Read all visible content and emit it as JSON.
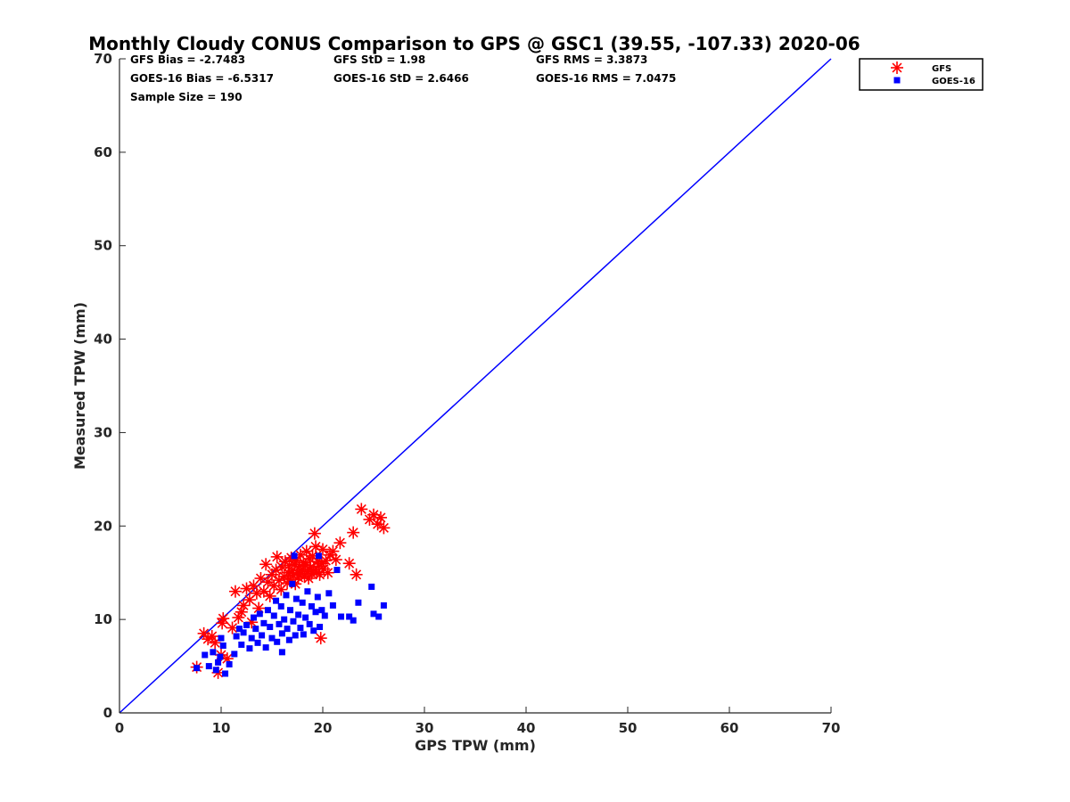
{
  "chart_data": {
    "type": "scatter",
    "title": "Monthly Cloudy CONUS Comparison to GPS @ GSC1 (39.55, -107.33) 2020-06",
    "xlabel": "GPS TPW (mm)",
    "ylabel": "Measured TPW (mm)",
    "xlim": [
      0,
      70
    ],
    "ylim": [
      0,
      70
    ],
    "xticks": [
      "0",
      "10",
      "20",
      "30",
      "40",
      "50",
      "60",
      "70"
    ],
    "yticks": [
      "0",
      "10",
      "20",
      "30",
      "40",
      "50",
      "60",
      "70"
    ],
    "grid": false,
    "legend_position": "outside-top-right",
    "reference_line": {
      "x": [
        0,
        70
      ],
      "y": [
        0,
        70
      ],
      "color": "#0000ff"
    },
    "stats": [
      [
        "GFS Bias = -2.7483",
        "GFS StD = 1.98",
        "GFS RMS = 3.3873"
      ],
      [
        "GOES-16 Bias = -6.5317",
        "GOES-16 StD = 2.6466",
        "GOES-16 RMS = 7.0475"
      ],
      [
        "Sample Size = 190",
        "",
        ""
      ]
    ],
    "series": [
      {
        "name": "GFS",
        "marker": "asterisk",
        "color": "#ff0000",
        "points": [
          [
            7.6,
            4.9
          ],
          [
            8.3,
            8.5
          ],
          [
            8.7,
            7.9
          ],
          [
            9.1,
            8.2
          ],
          [
            9.4,
            7.5
          ],
          [
            9.7,
            4.3
          ],
          [
            10.0,
            6.2
          ],
          [
            10.1,
            9.6
          ],
          [
            10.2,
            10.1
          ],
          [
            10.6,
            5.8
          ],
          [
            11.1,
            9.1
          ],
          [
            11.4,
            13.0
          ],
          [
            11.7,
            10.2
          ],
          [
            12.0,
            10.8
          ],
          [
            12.2,
            11.5
          ],
          [
            12.5,
            13.3
          ],
          [
            12.8,
            12.1
          ],
          [
            13.0,
            9.7
          ],
          [
            13.2,
            13.6
          ],
          [
            13.5,
            12.8
          ],
          [
            13.7,
            11.2
          ],
          [
            13.9,
            14.4
          ],
          [
            14.2,
            13.0
          ],
          [
            14.4,
            15.9
          ],
          [
            14.6,
            14.0
          ],
          [
            14.8,
            12.5
          ],
          [
            15.0,
            14.8
          ],
          [
            15.2,
            13.6
          ],
          [
            15.4,
            15.3
          ],
          [
            15.5,
            16.7
          ],
          [
            15.7,
            14.2
          ],
          [
            15.9,
            13.2
          ],
          [
            16.0,
            15.6
          ],
          [
            16.2,
            14.6
          ],
          [
            16.3,
            16.2
          ],
          [
            16.5,
            13.9
          ],
          [
            16.6,
            15.0
          ],
          [
            16.7,
            15.8
          ],
          [
            16.8,
            14.3
          ],
          [
            16.9,
            16.6
          ],
          [
            17.0,
            15.2
          ],
          [
            17.1,
            14.7
          ],
          [
            17.2,
            15.9
          ],
          [
            17.3,
            13.8
          ],
          [
            17.4,
            16.3
          ],
          [
            17.5,
            15.0
          ],
          [
            17.6,
            14.5
          ],
          [
            17.7,
            15.7
          ],
          [
            17.8,
            16.9
          ],
          [
            17.9,
            14.9
          ],
          [
            18.0,
            15.4
          ],
          [
            18.1,
            16.1
          ],
          [
            18.2,
            14.6
          ],
          [
            18.3,
            15.8
          ],
          [
            18.4,
            17.3
          ],
          [
            18.5,
            15.1
          ],
          [
            18.6,
            14.4
          ],
          [
            18.7,
            16.5
          ],
          [
            18.8,
            15.6
          ],
          [
            18.9,
            14.9
          ],
          [
            19.0,
            16.8
          ],
          [
            19.1,
            15.3
          ],
          [
            19.2,
            19.2
          ],
          [
            19.3,
            17.8
          ],
          [
            19.4,
            15.0
          ],
          [
            19.5,
            16.2
          ],
          [
            19.6,
            15.7
          ],
          [
            19.7,
            14.8
          ],
          [
            19.8,
            8.0
          ],
          [
            19.9,
            16.0
          ],
          [
            20.0,
            17.5
          ],
          [
            20.1,
            15.4
          ],
          [
            20.3,
            16.3
          ],
          [
            20.5,
            15.0
          ],
          [
            20.7,
            16.9
          ],
          [
            21.0,
            17.3
          ],
          [
            21.3,
            16.4
          ],
          [
            21.7,
            18.2
          ],
          [
            22.6,
            16.0
          ],
          [
            23.0,
            19.3
          ],
          [
            23.3,
            14.8
          ],
          [
            23.8,
            21.8
          ],
          [
            24.6,
            20.7
          ],
          [
            25.0,
            21.2
          ],
          [
            25.4,
            20.2
          ],
          [
            25.7,
            20.9
          ],
          [
            26.0,
            19.8
          ]
        ]
      },
      {
        "name": "GOES-16",
        "marker": "square",
        "color": "#0000ff",
        "points": [
          [
            7.6,
            4.8
          ],
          [
            8.4,
            6.2
          ],
          [
            8.8,
            5.0
          ],
          [
            9.2,
            6.5
          ],
          [
            9.5,
            4.6
          ],
          [
            9.7,
            5.4
          ],
          [
            9.9,
            6.0
          ],
          [
            10.0,
            8.0
          ],
          [
            10.2,
            7.2
          ],
          [
            10.4,
            4.2
          ],
          [
            10.8,
            5.2
          ],
          [
            11.3,
            6.3
          ],
          [
            11.5,
            8.2
          ],
          [
            11.8,
            9.0
          ],
          [
            12.0,
            7.3
          ],
          [
            12.2,
            8.6
          ],
          [
            12.5,
            9.4
          ],
          [
            12.8,
            6.9
          ],
          [
            13.0,
            8.0
          ],
          [
            13.2,
            10.2
          ],
          [
            13.4,
            9.0
          ],
          [
            13.6,
            7.5
          ],
          [
            13.8,
            10.6
          ],
          [
            14.0,
            8.3
          ],
          [
            14.2,
            9.6
          ],
          [
            14.4,
            7.0
          ],
          [
            14.6,
            11.0
          ],
          [
            14.8,
            9.2
          ],
          [
            15.0,
            8.0
          ],
          [
            15.2,
            10.4
          ],
          [
            15.4,
            12.0
          ],
          [
            15.5,
            7.6
          ],
          [
            15.7,
            9.5
          ],
          [
            15.9,
            11.4
          ],
          [
            16.0,
            8.5
          ],
          [
            16.2,
            10.0
          ],
          [
            16.4,
            12.6
          ],
          [
            16.5,
            9.0
          ],
          [
            16.7,
            7.8
          ],
          [
            16.8,
            11.0
          ],
          [
            17.0,
            13.8
          ],
          [
            17.1,
            9.8
          ],
          [
            17.3,
            8.3
          ],
          [
            17.4,
            12.2
          ],
          [
            17.6,
            10.5
          ],
          [
            17.8,
            9.1
          ],
          [
            18.0,
            11.8
          ],
          [
            18.1,
            8.4
          ],
          [
            18.3,
            10.2
          ],
          [
            18.5,
            13.0
          ],
          [
            18.7,
            9.5
          ],
          [
            18.9,
            11.4
          ],
          [
            19.1,
            8.8
          ],
          [
            19.3,
            10.8
          ],
          [
            19.5,
            12.4
          ],
          [
            19.7,
            9.2
          ],
          [
            19.9,
            11.0
          ],
          [
            20.2,
            10.4
          ],
          [
            20.6,
            12.8
          ],
          [
            21.0,
            11.5
          ],
          [
            21.4,
            15.3
          ],
          [
            21.8,
            10.3
          ],
          [
            22.6,
            10.3
          ],
          [
            23.0,
            9.9
          ],
          [
            23.5,
            11.8
          ],
          [
            24.8,
            13.5
          ],
          [
            25.0,
            10.6
          ],
          [
            25.5,
            10.3
          ],
          [
            26.0,
            11.5
          ],
          [
            17.2,
            16.8
          ],
          [
            16.0,
            6.5
          ],
          [
            19.6,
            16.8
          ]
        ]
      }
    ]
  }
}
